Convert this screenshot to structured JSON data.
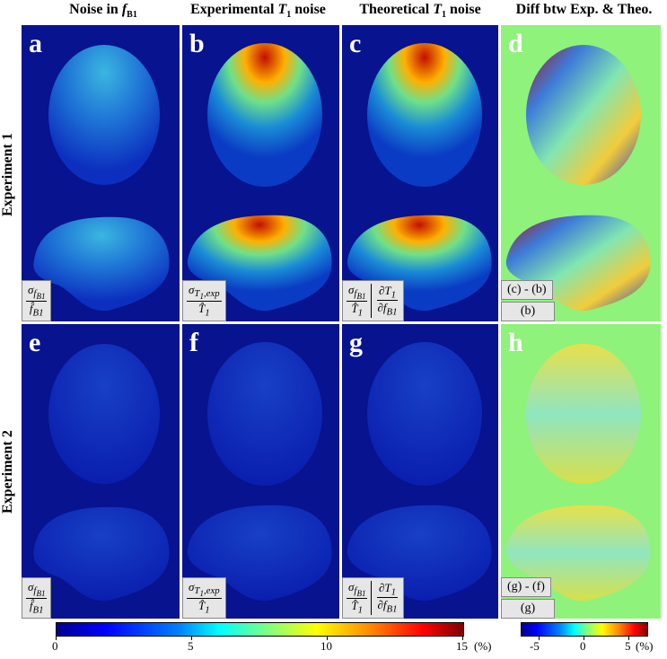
{
  "columns": [
    {
      "prefix": "Noise in ",
      "italic": "f",
      "sub": "B1",
      "suffix": ""
    },
    {
      "prefix": "Experimental ",
      "italic": "T",
      "sub": "1",
      "suffix": " noise"
    },
    {
      "prefix": "Theoretical ",
      "italic": "T",
      "sub": "1",
      "suffix": " noise"
    },
    {
      "prefix": "Diff btw Exp. & Theo.",
      "italic": "",
      "sub": "",
      "suffix": ""
    }
  ],
  "rows": [
    "Experiment 1",
    "Experiment 2"
  ],
  "panels": [
    "a",
    "b",
    "c",
    "d",
    "e",
    "f",
    "g",
    "h"
  ],
  "formulas": {
    "col1": {
      "num": "σ",
      "num_sub": "f",
      "num_subsub": "B1",
      "den": "f̂",
      "den_sub": "B1"
    },
    "col2": {
      "num": "σ",
      "num_sub": "T₁,exp",
      "den": "T̂",
      "den_sub": "1"
    },
    "col3": {
      "num": "σ",
      "num_sub": "f_B1",
      "den": "T̂",
      "den_sub": "1",
      "num2": "∂T",
      "num2_sub": "1",
      "den2": "∂f",
      "den2_sub": "B1"
    }
  },
  "diff_labels": {
    "exp1_top": "(c) - (b)",
    "exp1_bottom": "(b)",
    "exp2_top": "(g) - (f)",
    "exp2_bottom": "(g)"
  },
  "colorbar_main": {
    "ticks": [
      "0",
      "5",
      "10",
      "15"
    ],
    "unit": "(%)",
    "range": [
      0,
      15
    ]
  },
  "colorbar_diff": {
    "ticks": [
      "-5",
      "0",
      "5"
    ],
    "unit": "(%)",
    "range": [
      -7,
      7
    ]
  },
  "colors": {
    "background_panel": "#07138f",
    "diff_background": "#8ff27a",
    "formula_box": "#e6e6e6"
  }
}
